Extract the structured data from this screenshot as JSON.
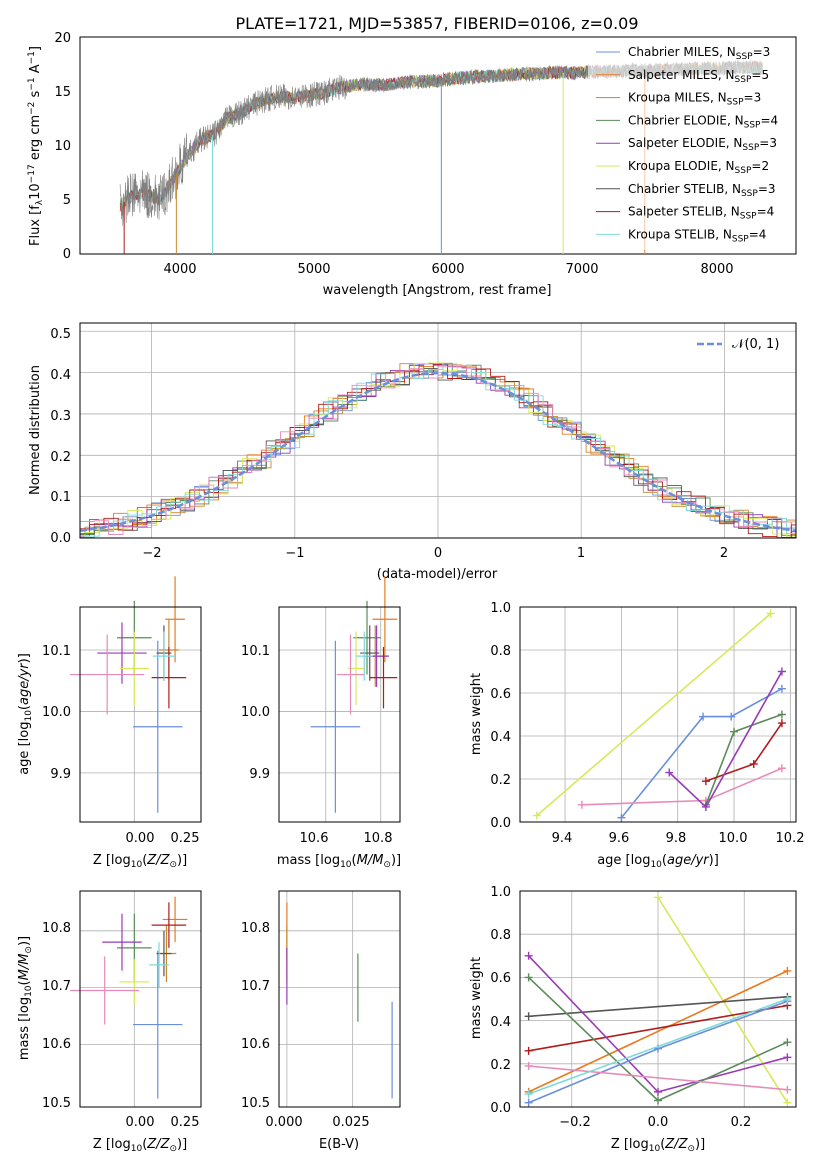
{
  "title": "PLATE=1721, MJD=53857, FIBERID=0106, z=0.09",
  "colors": {
    "c1": "#6a8fdc",
    "c2": "#e87b22",
    "c3": "#c9872d",
    "c4": "#5b8c5a",
    "c5": "#9a3ab8",
    "c6": "#d8e85a",
    "c7": "#555555",
    "c8": "#b01c1c",
    "c9": "#7fd8d8",
    "c10": "#e88ab8",
    "c_gray": "#808080"
  },
  "panels": {
    "spectrum": {
      "xlabel": "wavelength [Angstrom, rest frame]",
      "xticks": [
        "4000",
        "5000",
        "6000",
        "7000",
        "8000"
      ],
      "yticks": [
        "0",
        "5",
        "10",
        "15",
        "20"
      ]
    },
    "hist": {
      "xlabel": "(data-model)/error",
      "ylabel": "Normed distribution",
      "xticks": [
        "−2",
        "−1",
        "0",
        "1",
        "2"
      ],
      "yticks": [
        "0.0",
        "0.1",
        "0.2",
        "0.3",
        "0.4",
        "0.5"
      ],
      "legend": "𝒩(0, 1)"
    },
    "age_z": {
      "xlabel": "Z [log10(Z/Z⊙)]",
      "xticks": [
        "0.00",
        "0.25"
      ],
      "yticks": [
        "9.9",
        "10.0",
        "10.1"
      ]
    },
    "age_mass": {
      "xlabel": "mass [log10(M/M⊙)]",
      "xticks": [
        "10.6",
        "10.8"
      ],
      "yticks": [
        "9.9",
        "10.0",
        "10.1"
      ]
    },
    "weight_age": {
      "xlabel": "age  [log10(age/yr)]",
      "ylabel": "mass weight",
      "xticks": [
        "9.4",
        "9.6",
        "9.8",
        "10.0",
        "10.2"
      ],
      "yticks": [
        "0.0",
        "0.2",
        "0.4",
        "0.6",
        "0.8",
        "1.0"
      ]
    },
    "mass_z": {
      "xlabel": "Z [log10(Z/Z⊙)]",
      "xticks": [
        "0.00",
        "0.25"
      ],
      "yticks": [
        "10.5",
        "10.6",
        "10.7",
        "10.8"
      ]
    },
    "mass_ebv": {
      "xlabel": "E(B-V)",
      "xticks": [
        "0.000",
        "0.025"
      ],
      "yticks": [
        "10.5",
        "10.6",
        "10.7",
        "10.8"
      ]
    },
    "weight_z": {
      "xlabel": "Z [log10(Z/Z⊙)]",
      "ylabel": "mass weight",
      "xticks": [
        "−0.2",
        "0.0",
        "0.2"
      ],
      "yticks": [
        "0.0",
        "0.2",
        "0.4",
        "0.6",
        "0.8",
        "1.0"
      ]
    }
  },
  "chart_data": [
    {
      "type": "line",
      "title": "PLATE=1721, MJD=53857, FIBERID=0106, z=0.09",
      "xlabel": "wavelength [Angstrom, rest frame]",
      "ylabel": "Flux [fλ10^-17 erg cm^-2 s^-1 A^-1]",
      "xlim": [
        3200,
        8550
      ],
      "ylim": [
        0,
        20
      ],
      "legend": [
        "Chabrier MILES, N_SSP=3",
        "Salpeter MILES, N_SSP=5",
        "Kroupa MILES, N_SSP=3",
        "Chabrier ELODIE, N_SSP=4",
        "Salpeter ELODIE, N_SSP=3",
        "Kroupa ELODIE, N_SSP=2",
        "Chabrier STELIB, N_SSP=3",
        "Salpeter STELIB, N_SSP=4",
        "Kroupa STELIB, N_SSP=4"
      ],
      "legend_location": "right",
      "series": [
        {
          "name": "data",
          "x": [
            3500,
            3600,
            3700,
            3800,
            3900,
            4000,
            4100,
            4200,
            4300,
            4400,
            4500,
            4600,
            4700,
            4800,
            4900,
            5000,
            5100,
            5200,
            5300,
            5400,
            5500,
            5600,
            5700,
            5800,
            5900,
            6000,
            6100,
            6200,
            6300,
            6400,
            6500,
            6600,
            6700,
            6800,
            6900,
            7000,
            7100,
            7200,
            7300,
            7400,
            7500,
            7600,
            7700,
            7800,
            7900,
            8000,
            8100,
            8200,
            8300
          ],
          "y": [
            4.5,
            5.5,
            5.5,
            5.0,
            7.0,
            9.0,
            10.5,
            11.0,
            12.5,
            13.0,
            13.8,
            14.3,
            14.5,
            14.4,
            14.6,
            14.8,
            15.2,
            15.5,
            15.6,
            15.6,
            15.6,
            15.8,
            15.9,
            15.9,
            16.0,
            16.2,
            16.3,
            16.4,
            16.4,
            16.5,
            16.6,
            16.6,
            16.7,
            16.7,
            16.7,
            16.8,
            16.8,
            16.8,
            16.9,
            16.9,
            16.9,
            17.0,
            17.0,
            17.1,
            17.1,
            17.1,
            17.2,
            17.2,
            17.2
          ]
        }
      ]
    },
    {
      "type": "line",
      "xlabel": "(data-model)/error",
      "ylabel": "Normed distribution",
      "xlim": [
        -2.5,
        2.5
      ],
      "ylim": [
        0,
        0.52
      ],
      "grid": true,
      "series": [
        {
          "name": "𝒩(0, 1)",
          "style": "dashed",
          "x": [
            -2.5,
            2.5
          ],
          "y": [
            0.0175,
            0.0175
          ]
        }
      ]
    },
    {
      "type": "scatter",
      "xlabel": "Z [log10(Z/Z⊙)]",
      "ylabel": "age  [log10(age/yr)]",
      "xlim": [
        -0.22,
        0.27
      ],
      "ylim": [
        9.82,
        10.17
      ],
      "points": [
        {
          "x": 0.095,
          "y": 9.975,
          "xerr": 0.1,
          "yerr": 0.14
        },
        {
          "x": 0.165,
          "y": 10.15,
          "xerr": 0.04,
          "yerr": 0.07
        },
        {
          "x": 0.14,
          "y": 10.1,
          "xerr": 0.04,
          "yerr": 0.05
        },
        {
          "x": 0.0,
          "y": 10.12,
          "xerr": 0.07,
          "yerr": 0.06
        },
        {
          "x": -0.05,
          "y": 10.095,
          "xerr": 0.1,
          "yerr": 0.05
        },
        {
          "x": 0.0,
          "y": 10.07,
          "xerr": 0.06,
          "yerr": 0.06
        },
        {
          "x": 0.12,
          "y": 10.095,
          "xerr": 0.03,
          "yerr": 0.045
        },
        {
          "x": 0.14,
          "y": 10.055,
          "xerr": 0.07,
          "yerr": 0.05
        },
        {
          "x": 0.12,
          "y": 10.09,
          "xerr": 0.045,
          "yerr": 0.04
        },
        {
          "x": -0.11,
          "y": 10.06,
          "xerr": 0.15,
          "yerr": 0.065
        }
      ]
    },
    {
      "type": "scatter",
      "xlabel": "mass [log10(M/M⊙)]",
      "xlim": [
        10.43,
        10.87
      ],
      "ylim": [
        9.82,
        10.17
      ],
      "points": [
        {
          "x": 10.635,
          "y": 9.975,
          "xerr": 0.09,
          "yerr": 0.14
        },
        {
          "x": 10.815,
          "y": 10.15,
          "xerr": 0.045,
          "yerr": 0.07
        },
        {
          "x": 10.78,
          "y": 10.09,
          "xerr": 0.04,
          "yerr": 0.05
        },
        {
          "x": 10.75,
          "y": 10.12,
          "xerr": 0.05,
          "yerr": 0.06
        },
        {
          "x": 10.785,
          "y": 10.09,
          "xerr": 0.045,
          "yerr": 0.05
        },
        {
          "x": 10.71,
          "y": 10.07,
          "xerr": 0.03,
          "yerr": 0.06
        },
        {
          "x": 10.76,
          "y": 10.095,
          "xerr": 0.035,
          "yerr": 0.045
        },
        {
          "x": 10.81,
          "y": 10.055,
          "xerr": 0.05,
          "yerr": 0.05
        },
        {
          "x": 10.74,
          "y": 10.09,
          "xerr": 0.03,
          "yerr": 0.04
        },
        {
          "x": 10.69,
          "y": 10.06,
          "xerr": 0.05,
          "yerr": 0.065
        }
      ]
    },
    {
      "type": "line",
      "xlabel": "age  [log10(age/yr)]",
      "ylabel": "mass weight",
      "xlim": [
        9.24,
        10.22
      ],
      "ylim": [
        0,
        1
      ],
      "grid": true,
      "series": [
        {
          "x": [
            9.3,
            10.13
          ],
          "y": [
            0.03,
            0.97
          ]
        },
        {
          "x": [
            9.6,
            9.89,
            9.99,
            10.17
          ],
          "y": [
            0.02,
            0.49,
            0.49,
            0.62
          ]
        },
        {
          "x": [
            9.46,
            9.9,
            10.17
          ],
          "y": [
            0.08,
            0.1,
            0.25
          ]
        },
        {
          "x": [
            9.9,
            10.0,
            10.17
          ],
          "y": [
            0.08,
            0.42,
            0.5
          ]
        },
        {
          "x": [
            9.9,
            10.07,
            10.17
          ],
          "y": [
            0.19,
            0.27,
            0.46
          ]
        },
        {
          "x": [
            9.77,
            9.9,
            10.17
          ],
          "y": [
            0.23,
            0.07,
            0.7
          ]
        }
      ]
    },
    {
      "type": "scatter",
      "xlabel": "Z [log10(Z/Z⊙)]",
      "ylabel": "mass  [log10(M/M⊙)]",
      "xlim": [
        -0.22,
        0.27
      ],
      "ylim": [
        10.49,
        10.87
      ],
      "points": [
        {
          "x": 0.095,
          "y": 10.635,
          "xerr": 0.1,
          "yerr": 0.13
        },
        {
          "x": 0.165,
          "y": 10.82,
          "xerr": 0.05,
          "yerr": 0.04
        },
        {
          "x": 0.13,
          "y": 10.76,
          "xerr": 0.04,
          "yerr": 0.05
        },
        {
          "x": 0.0,
          "y": 10.77,
          "xerr": 0.07,
          "yerr": 0.06
        },
        {
          "x": -0.05,
          "y": 10.78,
          "xerr": 0.08,
          "yerr": 0.05
        },
        {
          "x": 0.0,
          "y": 10.71,
          "xerr": 0.06,
          "yerr": 0.04
        },
        {
          "x": 0.12,
          "y": 10.76,
          "xerr": 0.03,
          "yerr": 0.04
        },
        {
          "x": 0.14,
          "y": 10.81,
          "xerr": 0.07,
          "yerr": 0.04
        },
        {
          "x": 0.1,
          "y": 10.74,
          "xerr": 0.04,
          "yerr": 0.04
        },
        {
          "x": -0.12,
          "y": 10.695,
          "xerr": 0.14,
          "yerr": 0.06
        }
      ]
    },
    {
      "type": "scatter",
      "xlabel": "E(B-V)",
      "xlim": [
        -0.003,
        0.043
      ],
      "ylim": [
        10.49,
        10.87
      ],
      "points": [
        {
          "x": 0.04,
          "y": 10.59,
          "yerr": 0.085
        },
        {
          "x": 0.0,
          "y": 10.8,
          "yerr": 0.05
        },
        {
          "x": 0.0,
          "y": 10.76,
          "yerr": 0.05
        },
        {
          "x": 0.027,
          "y": 10.7,
          "yerr": 0.06
        },
        {
          "x": 0.0,
          "y": 10.72,
          "yerr": 0.05
        }
      ]
    },
    {
      "type": "line",
      "xlabel": "Z [log10(Z/Z⊙)]",
      "ylabel": "mass weight",
      "xlim": [
        -0.32,
        0.32
      ],
      "ylim": [
        0,
        1
      ],
      "grid": true,
      "series": [
        {
          "x": [
            0.0,
            0.3
          ],
          "y": [
            0.97,
            0.02
          ]
        },
        {
          "x": [
            -0.3,
            0.3
          ],
          "y": [
            0.07,
            0.63
          ]
        },
        {
          "x": [
            -0.3,
            0.3
          ],
          "y": [
            0.42,
            0.51
          ]
        },
        {
          "x": [
            -0.3,
            0.3
          ],
          "y": [
            0.26,
            0.47
          ]
        },
        {
          "x": [
            -0.3,
            0.0,
            0.3
          ],
          "y": [
            0.7,
            0.07,
            0.23
          ]
        },
        {
          "x": [
            -0.3,
            0.0,
            0.3
          ],
          "y": [
            0.6,
            0.03,
            0.3
          ]
        },
        {
          "x": [
            -0.3,
            0.0,
            0.3
          ],
          "y": [
            0.02,
            0.27,
            0.49
          ]
        },
        {
          "x": [
            -0.3,
            0.3
          ],
          "y": [
            0.19,
            0.08
          ]
        },
        {
          "x": [
            -0.3,
            0.3
          ],
          "y": [
            0.06,
            0.5
          ]
        }
      ]
    }
  ]
}
